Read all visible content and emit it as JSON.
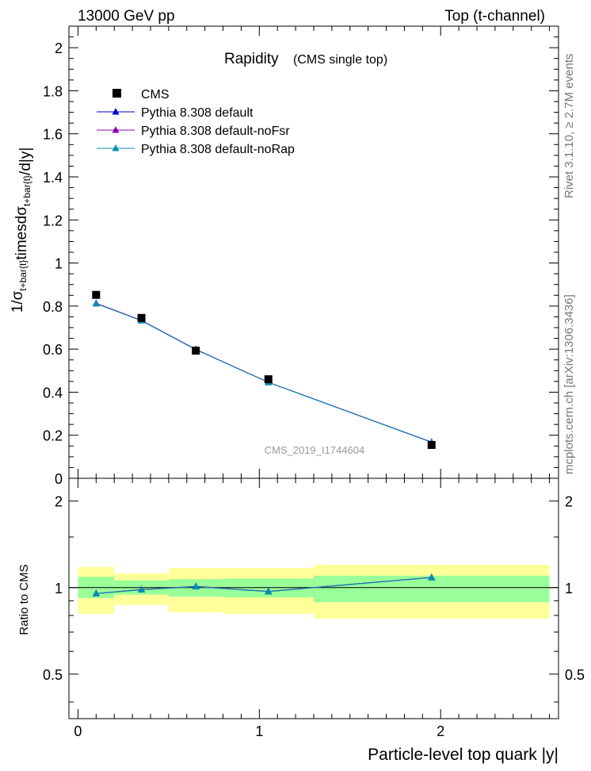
{
  "header": {
    "left": "13000 GeV pp",
    "right": "Top (t-channel)"
  },
  "side_labels": {
    "rivet": "Rivet 3.1.10, ≥ 2.7M events",
    "mcplots": "mcplots.cern.ch [arXiv:1306.3436]"
  },
  "chart_data": {
    "type": "line",
    "title": "Rapidity",
    "subtitle": "(CMS single top)",
    "watermark": "CMS_2019_I1744604",
    "xlabel": "Particle-level top quark |y|",
    "ylabel": "1/σ_{t+bar{t}}timesdσ_{t+bar{t}}/d|y|",
    "ratio_ylabel": "Ratio to CMS",
    "xlim": [
      -0.05,
      2.65
    ],
    "ylim": [
      0,
      2.1
    ],
    "ratio_ylim": [
      0.35,
      2.4
    ],
    "ratio_scale": "log",
    "x_ticks": [
      "0",
      "1",
      "2"
    ],
    "y_ticks": [
      "0",
      "0.2",
      "0.4",
      "0.6",
      "0.8",
      "1",
      "1.2",
      "1.4",
      "1.6",
      "1.8",
      "2"
    ],
    "ratio_ticks": [
      "0.5",
      "1",
      "2"
    ],
    "legend_position": "top-left",
    "bins": [
      {
        "lo": 0.0,
        "hi": 0.2
      },
      {
        "lo": 0.2,
        "hi": 0.5
      },
      {
        "lo": 0.5,
        "hi": 0.8
      },
      {
        "lo": 0.8,
        "hi": 1.3
      },
      {
        "lo": 1.3,
        "hi": 2.6
      }
    ],
    "data": {
      "name": "CMS",
      "x": [
        0.1,
        0.35,
        0.65,
        1.05,
        1.95
      ],
      "y": [
        0.852,
        0.745,
        0.593,
        0.46,
        0.155
      ]
    },
    "band_inner": [
      {
        "lo": 0.92,
        "hi": 1.09
      },
      {
        "lo": 0.945,
        "hi": 1.06
      },
      {
        "lo": 0.93,
        "hi": 1.07
      },
      {
        "lo": 0.925,
        "hi": 1.075
      },
      {
        "lo": 0.89,
        "hi": 1.1
      }
    ],
    "band_outer": [
      {
        "lo": 0.81,
        "hi": 1.18
      },
      {
        "lo": 0.87,
        "hi": 1.12
      },
      {
        "lo": 0.82,
        "hi": 1.17
      },
      {
        "lo": 0.81,
        "hi": 1.17
      },
      {
        "lo": 0.78,
        "hi": 1.2
      }
    ],
    "series": [
      {
        "name": "Pythia 8.308 default",
        "color": "#0000cc",
        "x": [
          0.1,
          0.35,
          0.65,
          1.05,
          1.95
        ],
        "y": [
          0.812,
          0.733,
          0.598,
          0.446,
          0.168
        ],
        "ratio": [
          0.953,
          0.984,
          1.008,
          0.97,
          1.085
        ]
      },
      {
        "name": "Pythia 8.308 default-noFsr",
        "color": "#8b00b0",
        "x": [
          0.1,
          0.35,
          0.65,
          1.05,
          1.95
        ],
        "y": [
          0.813,
          0.734,
          0.599,
          0.446,
          0.168
        ],
        "ratio": [
          0.954,
          0.985,
          1.01,
          0.97,
          1.085
        ]
      },
      {
        "name": "Pythia 8.308 default-noRap",
        "color": "#0090b0",
        "x": [
          0.1,
          0.35,
          0.65,
          1.05,
          1.95
        ],
        "y": [
          0.811,
          0.732,
          0.597,
          0.445,
          0.167
        ],
        "ratio": [
          0.952,
          0.983,
          1.007,
          0.968,
          1.083
        ]
      }
    ],
    "colors": {
      "band_inner": "#99ff99",
      "band_outer": "#ffff99",
      "data_marker": "#000000",
      "watermark": "#999999",
      "side_text": "#777777"
    }
  }
}
